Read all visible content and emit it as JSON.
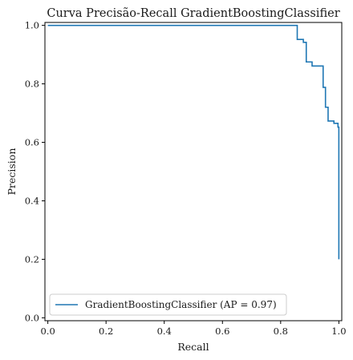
{
  "chart_data": {
    "type": "line",
    "title": "Curva Precisão-Recall GradientBoostingClassifier",
    "xlabel": "Recall",
    "ylabel": "Precision",
    "xlim": [
      -0.01,
      1.01
    ],
    "ylim": [
      -0.01,
      1.01
    ],
    "xticks": [
      "0.0",
      "0.2",
      "0.4",
      "0.6",
      "0.8",
      "1.0"
    ],
    "yticks": [
      "0.0",
      "0.2",
      "0.4",
      "0.6",
      "0.8",
      "1.0"
    ],
    "grid": false,
    "legend_position": "lower-left",
    "series": [
      {
        "name": "GradientBoostingClassifier (AP = 0.97)",
        "color": "#1f77b4",
        "x": [
          0.0,
          0.857,
          0.857,
          0.878,
          0.878,
          0.888,
          0.888,
          0.908,
          0.908,
          0.946,
          0.946,
          0.954,
          0.954,
          0.963,
          0.963,
          0.983,
          0.983,
          0.997,
          0.997,
          1.0,
          1.0
        ],
        "y": [
          1.0,
          1.0,
          0.952,
          0.952,
          0.942,
          0.942,
          0.875,
          0.875,
          0.861,
          0.861,
          0.788,
          0.788,
          0.72,
          0.72,
          0.673,
          0.673,
          0.665,
          0.665,
          0.652,
          0.652,
          0.2
        ]
      }
    ]
  }
}
